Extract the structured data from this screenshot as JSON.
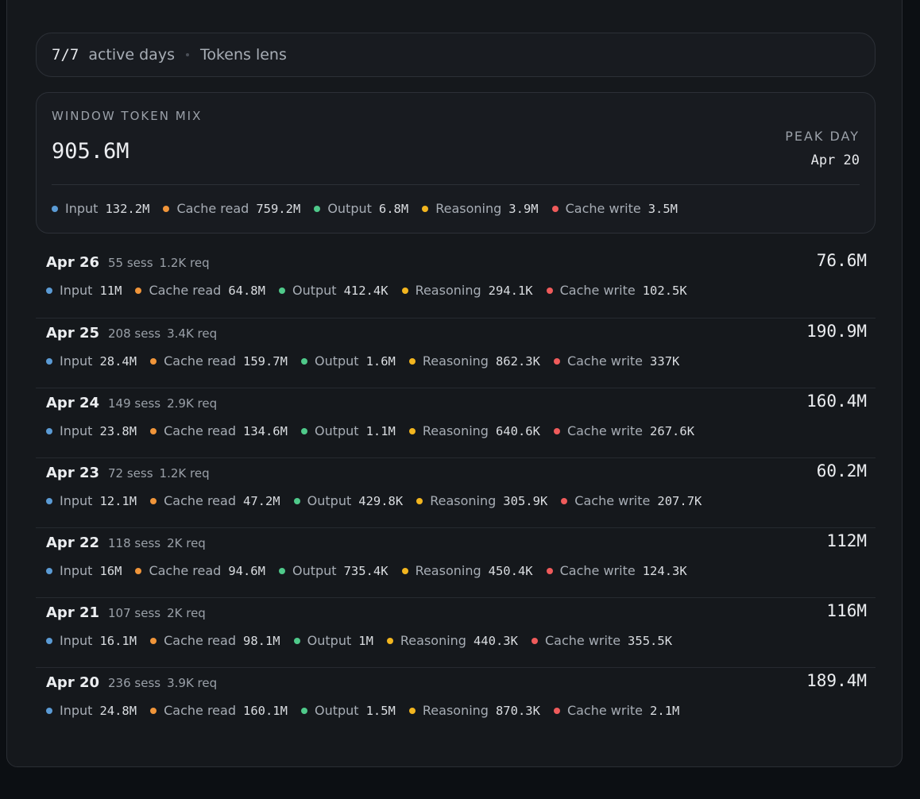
{
  "header": {
    "days": "7/7",
    "days_label": "active days",
    "lens": "Tokens lens"
  },
  "summary": {
    "title": "WINDOW TOKEN MIX",
    "total": "905.6M",
    "peak_label": "PEAK DAY",
    "peak_value": "Apr 20",
    "items": [
      {
        "label": "Input",
        "value": "132.2M"
      },
      {
        "label": "Cache read",
        "value": "759.2M"
      },
      {
        "label": "Output",
        "value": "6.8M"
      },
      {
        "label": "Reasoning",
        "value": "3.9M"
      },
      {
        "label": "Cache write",
        "value": "3.5M"
      }
    ]
  },
  "days": [
    {
      "date": "Apr 26",
      "sessions": "55 sess",
      "requests": "1.2K req",
      "total": "76.6M",
      "items": [
        {
          "label": "Input",
          "value": "11M"
        },
        {
          "label": "Cache read",
          "value": "64.8M"
        },
        {
          "label": "Output",
          "value": "412.4K"
        },
        {
          "label": "Reasoning",
          "value": "294.1K"
        },
        {
          "label": "Cache write",
          "value": "102.5K"
        }
      ]
    },
    {
      "date": "Apr 25",
      "sessions": "208 sess",
      "requests": "3.4K req",
      "total": "190.9M",
      "items": [
        {
          "label": "Input",
          "value": "28.4M"
        },
        {
          "label": "Cache read",
          "value": "159.7M"
        },
        {
          "label": "Output",
          "value": "1.6M"
        },
        {
          "label": "Reasoning",
          "value": "862.3K"
        },
        {
          "label": "Cache write",
          "value": "337K"
        }
      ]
    },
    {
      "date": "Apr 24",
      "sessions": "149 sess",
      "requests": "2.9K req",
      "total": "160.4M",
      "items": [
        {
          "label": "Input",
          "value": "23.8M"
        },
        {
          "label": "Cache read",
          "value": "134.6M"
        },
        {
          "label": "Output",
          "value": "1.1M"
        },
        {
          "label": "Reasoning",
          "value": "640.6K"
        },
        {
          "label": "Cache write",
          "value": "267.6K"
        }
      ]
    },
    {
      "date": "Apr 23",
      "sessions": "72 sess",
      "requests": "1.2K req",
      "total": "60.2M",
      "items": [
        {
          "label": "Input",
          "value": "12.1M"
        },
        {
          "label": "Cache read",
          "value": "47.2M"
        },
        {
          "label": "Output",
          "value": "429.8K"
        },
        {
          "label": "Reasoning",
          "value": "305.9K"
        },
        {
          "label": "Cache write",
          "value": "207.7K"
        }
      ]
    },
    {
      "date": "Apr 22",
      "sessions": "118 sess",
      "requests": "2K req",
      "total": "112M",
      "items": [
        {
          "label": "Input",
          "value": "16M"
        },
        {
          "label": "Cache read",
          "value": "94.6M"
        },
        {
          "label": "Output",
          "value": "735.4K"
        },
        {
          "label": "Reasoning",
          "value": "450.4K"
        },
        {
          "label": "Cache write",
          "value": "124.3K"
        }
      ]
    },
    {
      "date": "Apr 21",
      "sessions": "107 sess",
      "requests": "2K req",
      "total": "116M",
      "items": [
        {
          "label": "Input",
          "value": "16.1M"
        },
        {
          "label": "Cache read",
          "value": "98.1M"
        },
        {
          "label": "Output",
          "value": "1M"
        },
        {
          "label": "Reasoning",
          "value": "440.3K"
        },
        {
          "label": "Cache write",
          "value": "355.5K"
        }
      ]
    },
    {
      "date": "Apr 20",
      "sessions": "236 sess",
      "requests": "3.9K req",
      "total": "189.4M",
      "items": [
        {
          "label": "Input",
          "value": "24.8M"
        },
        {
          "label": "Cache read",
          "value": "160.1M"
        },
        {
          "label": "Output",
          "value": "1.5M"
        },
        {
          "label": "Reasoning",
          "value": "870.3K"
        },
        {
          "label": "Cache write",
          "value": "2.1M"
        }
      ]
    }
  ]
}
